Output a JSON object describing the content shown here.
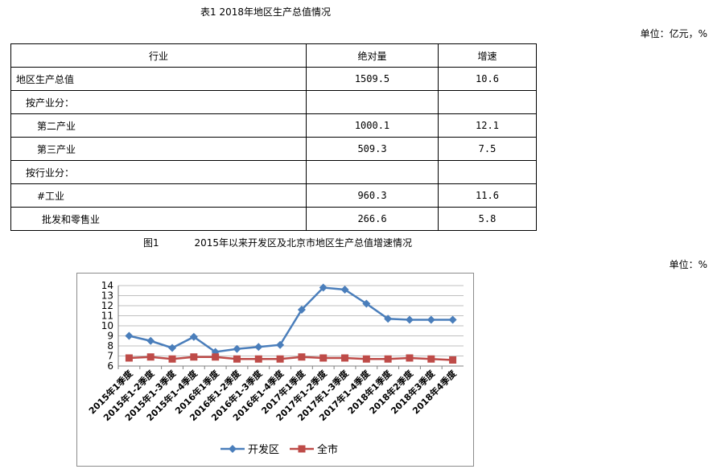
{
  "table": {
    "title": "表1 2018年地区生产总值情况",
    "unit": "单位：亿元，%",
    "headers": [
      "行业",
      "绝对量",
      "增速"
    ],
    "rows": [
      {
        "label": "地区生产总值",
        "value": "1509.5",
        "growth": "10.6"
      },
      {
        "label": "按产业分：",
        "value": "",
        "growth": ""
      },
      {
        "label": "第二产业",
        "value": "1000.1",
        "growth": "12.1"
      },
      {
        "label": "第三产业",
        "value": "509.3",
        "growth": "7.5"
      },
      {
        "label": "按行业分：",
        "value": "",
        "growth": ""
      },
      {
        "label": "#工业",
        "value": "960.3",
        "growth": "11.6"
      },
      {
        "label": "批发和零售业",
        "value": "266.6",
        "growth": "5.8"
      }
    ]
  },
  "figure": {
    "label": "图1",
    "title": "2015年以来开发区及北京市地区生产总值增速情况",
    "unit": "单位：%"
  },
  "chart_data": {
    "type": "line",
    "categories": [
      "2015年1季度",
      "2015年1-2季度",
      "2015年1-3季度",
      "2015年1-4季度",
      "2016年1季度",
      "2016年1-2季度",
      "2016年1-3季度",
      "2016年1-4季度",
      "2017年1季度",
      "2017年1-2季度",
      "2017年1-3季度",
      "2017年1-4季度",
      "2018年1季度",
      "2018年2季度",
      "2018年3季度",
      "2018年4季度"
    ],
    "series": [
      {
        "name": "开发区",
        "color": "#4a7ebb",
        "marker": "diamond",
        "values": [
          9.0,
          8.5,
          7.8,
          8.9,
          7.4,
          7.7,
          7.9,
          8.1,
          11.6,
          13.8,
          13.6,
          12.2,
          10.7,
          10.6,
          10.6,
          10.6
        ]
      },
      {
        "name": "全市",
        "color": "#be4b48",
        "marker": "square",
        "values": [
          6.8,
          6.9,
          6.7,
          6.9,
          6.9,
          6.7,
          6.7,
          6.7,
          6.9,
          6.8,
          6.8,
          6.7,
          6.7,
          6.8,
          6.7,
          6.6
        ]
      }
    ],
    "yticks": [
      6,
      7,
      8,
      9,
      10,
      11,
      12,
      13,
      14
    ],
    "ylim": [
      6,
      14
    ],
    "grid": true,
    "legend": "bottom"
  }
}
